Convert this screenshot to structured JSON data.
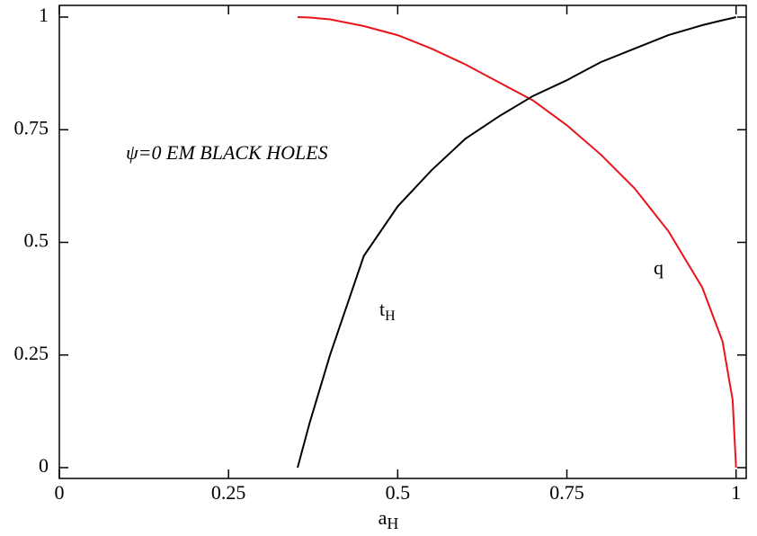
{
  "chart_data": {
    "type": "line",
    "annotation": "ψ=0 EM BLACK HOLES",
    "xlabel": {
      "text": "a",
      "sub": "H"
    },
    "x": [
      0.352,
      0.37,
      0.4,
      0.45,
      0.5,
      0.55,
      0.6,
      0.65,
      0.7,
      0.75,
      0.8,
      0.85,
      0.9,
      0.95,
      0.98,
      0.995,
      1.0
    ],
    "series": [
      {
        "name": {
          "text": "q",
          "sub": ""
        },
        "color": "#e8141a",
        "values": [
          1.0,
          0.999,
          0.995,
          0.98,
          0.96,
          0.93,
          0.895,
          0.855,
          0.815,
          0.76,
          0.695,
          0.62,
          0.525,
          0.4,
          0.28,
          0.15,
          0.0
        ]
      },
      {
        "name": {
          "text": "t",
          "sub": "H"
        },
        "color": "#000000",
        "values": [
          0.0,
          0.1,
          0.25,
          0.47,
          0.58,
          0.66,
          0.73,
          0.78,
          0.825,
          0.86,
          0.9,
          0.93,
          0.96,
          0.982,
          0.993,
          0.998,
          1.0
        ]
      }
    ],
    "xlim": [
      0,
      1.015
    ],
    "ylim": [
      -0.024,
      1.026
    ],
    "xticks": [
      0,
      0.25,
      0.5,
      0.75,
      1
    ],
    "yticks": [
      0,
      0.25,
      0.5,
      0.75,
      1
    ]
  }
}
